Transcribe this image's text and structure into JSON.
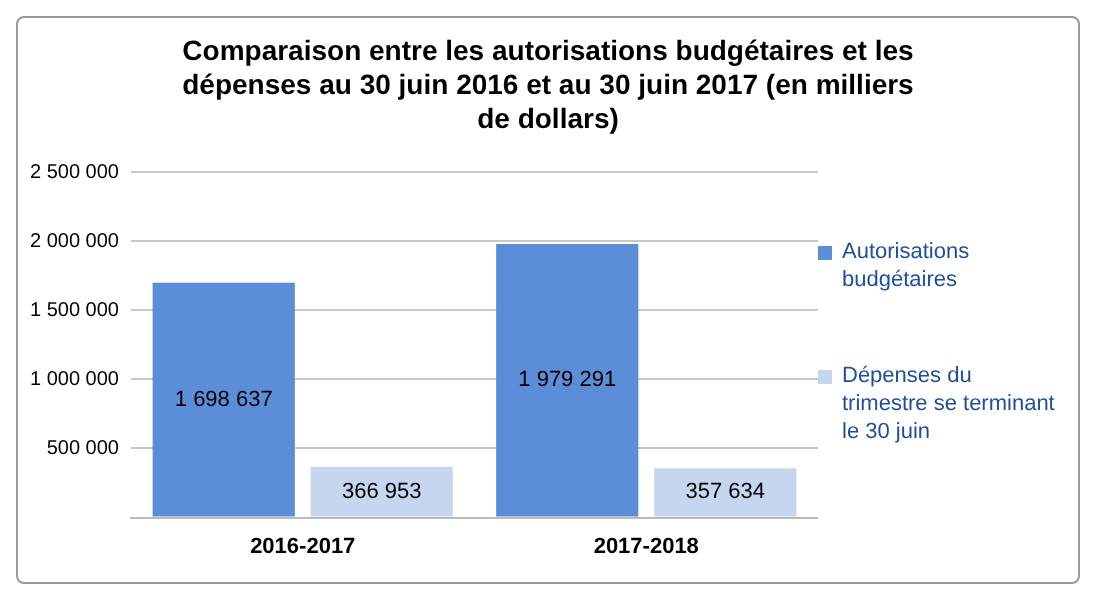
{
  "chart_data": {
    "type": "bar",
    "title": "Comparaison entre les autorisations budgétaires et les dépenses au 30 juin 2016 et au 30 juin 2017 (en milliers de dollars)",
    "categories": [
      "2016-2017",
      "2017-2018"
    ],
    "series": [
      {
        "name": "Autorisations budgétaires",
        "color": "#5b8dd9",
        "values": [
          1698637,
          1979291
        ],
        "value_labels": [
          "1 698 637",
          "1 979 291"
        ]
      },
      {
        "name": "Dépenses du trimestre se terminant le 30 juin",
        "color": "#c6d6ef",
        "values": [
          366953,
          357634
        ],
        "value_labels": [
          "366 953",
          "357 634"
        ]
      }
    ],
    "ylim": [
      0,
      2500000
    ],
    "yticks": [
      {
        "value": 0,
        "label": null
      },
      {
        "value": 500000,
        "label": "500 000"
      },
      {
        "value": 1000000,
        "label": "1 000 000"
      },
      {
        "value": 1500000,
        "label": "1 500 000"
      },
      {
        "value": 2000000,
        "label": "2 000 000"
      },
      {
        "value": 2500000,
        "label": "2 500 000"
      }
    ],
    "grid": "y",
    "legend": "right"
  }
}
